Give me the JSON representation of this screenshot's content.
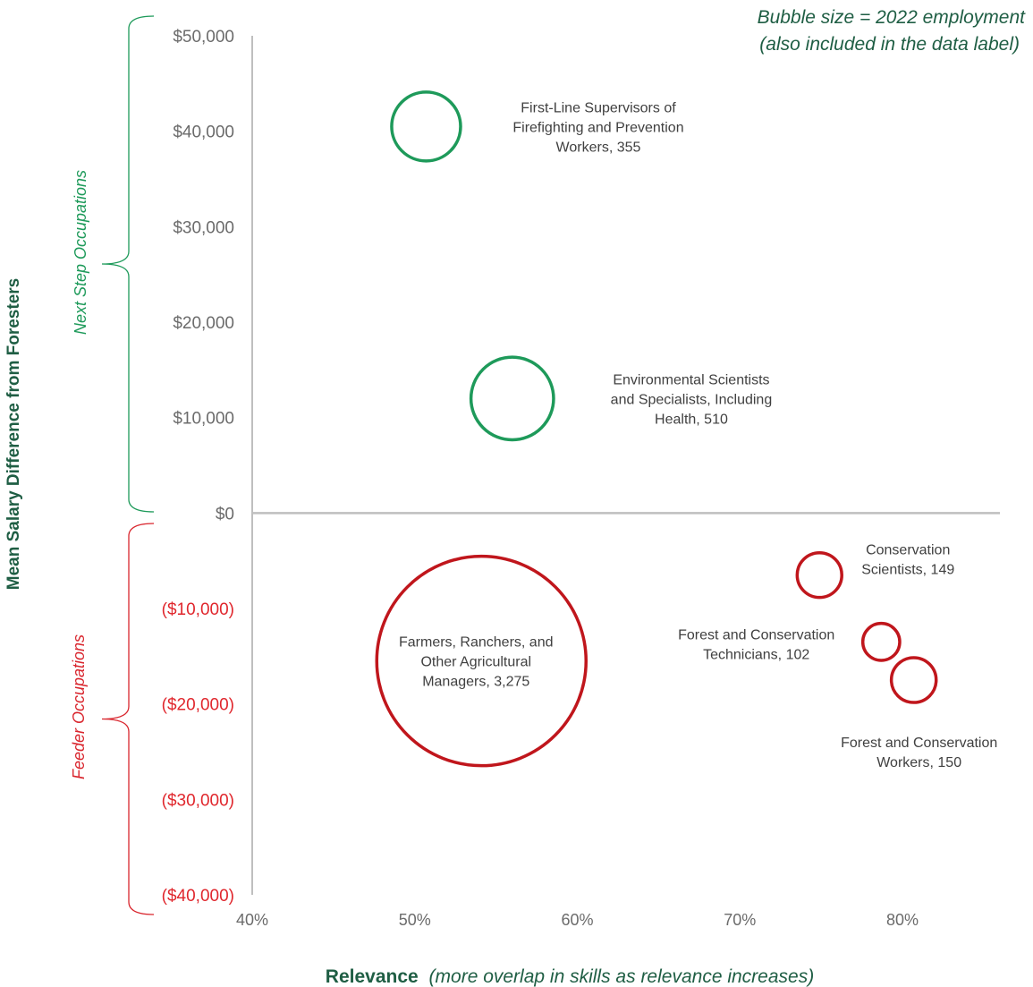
{
  "chart_data": {
    "type": "scatter",
    "title": "",
    "note_lines": [
      "Bubble size = 2022 employment",
      "(also included in the data label)"
    ],
    "xlabel": {
      "bold": "Relevance",
      "italic": "(more overlap in skills as relevance increases)"
    },
    "ylabel": "Mean Salary Difference from Foresters",
    "xlim": [
      0.4,
      0.86
    ],
    "ylim": [
      -40000,
      50000
    ],
    "x_ticks": [
      {
        "value": 0.4,
        "label": "40%"
      },
      {
        "value": 0.5,
        "label": "50%"
      },
      {
        "value": 0.6,
        "label": "60%"
      },
      {
        "value": 0.7,
        "label": "70%"
      },
      {
        "value": 0.8,
        "label": "80%"
      }
    ],
    "y_ticks": [
      {
        "value": 50000,
        "label": "$50,000"
      },
      {
        "value": 40000,
        "label": "$40,000"
      },
      {
        "value": 30000,
        "label": "$30,000"
      },
      {
        "value": 20000,
        "label": "$20,000"
      },
      {
        "value": 10000,
        "label": "$10,000"
      },
      {
        "value": 0,
        "label": "$0"
      },
      {
        "value": -10000,
        "label": "($10,000)"
      },
      {
        "value": -20000,
        "label": "($20,000)"
      },
      {
        "value": -30000,
        "label": "($30,000)"
      },
      {
        "value": -40000,
        "label": "($40,000)"
      }
    ],
    "groups": [
      {
        "name": "Next Step Occupations",
        "range": [
          0,
          50000
        ],
        "color": "#1e9a5a"
      },
      {
        "name": "Feeder Occupations",
        "range": [
          -42000,
          0
        ],
        "color": "#d9262e"
      }
    ],
    "bubbles": [
      {
        "label": [
          "First-Line Supervisors of",
          "Firefighting and Prevention",
          "Workers, 355"
        ],
        "x": 0.507,
        "y": 40500,
        "employment": 355,
        "group": "next",
        "label_pos": "right"
      },
      {
        "label": [
          "Environmental Scientists",
          "and Specialists, Including",
          "Health, 510"
        ],
        "x": 0.56,
        "y": 12000,
        "employment": 510,
        "group": "next",
        "label_pos": "right"
      },
      {
        "label": [
          "Farmers, Ranchers, and",
          "Other Agricultural",
          "Managers, 3,275"
        ],
        "x": 0.541,
        "y": -15500,
        "employment": 3275,
        "group": "feeder",
        "label_pos": "center"
      },
      {
        "label": [
          "Conservation",
          "Scientists, 149"
        ],
        "x": 0.749,
        "y": -6500,
        "employment": 149,
        "group": "feeder",
        "label_pos": "upper-right"
      },
      {
        "label": [
          "Forest and Conservation",
          "Technicians, 102"
        ],
        "x": 0.787,
        "y": -13500,
        "employment": 102,
        "group": "feeder",
        "label_pos": "left"
      },
      {
        "label": [
          "Forest and Conservation",
          "Workers, 150"
        ],
        "x": 0.807,
        "y": -17500,
        "employment": 150,
        "group": "feeder",
        "label_pos": "below"
      }
    ],
    "colors": {
      "next": "#1e9a5a",
      "feeder": "#c0161c",
      "positive_tick": "#6b6b6b",
      "negative_tick": "#e0272d",
      "axis": "#bfbfbf",
      "title_green": "#1f5e44"
    }
  }
}
